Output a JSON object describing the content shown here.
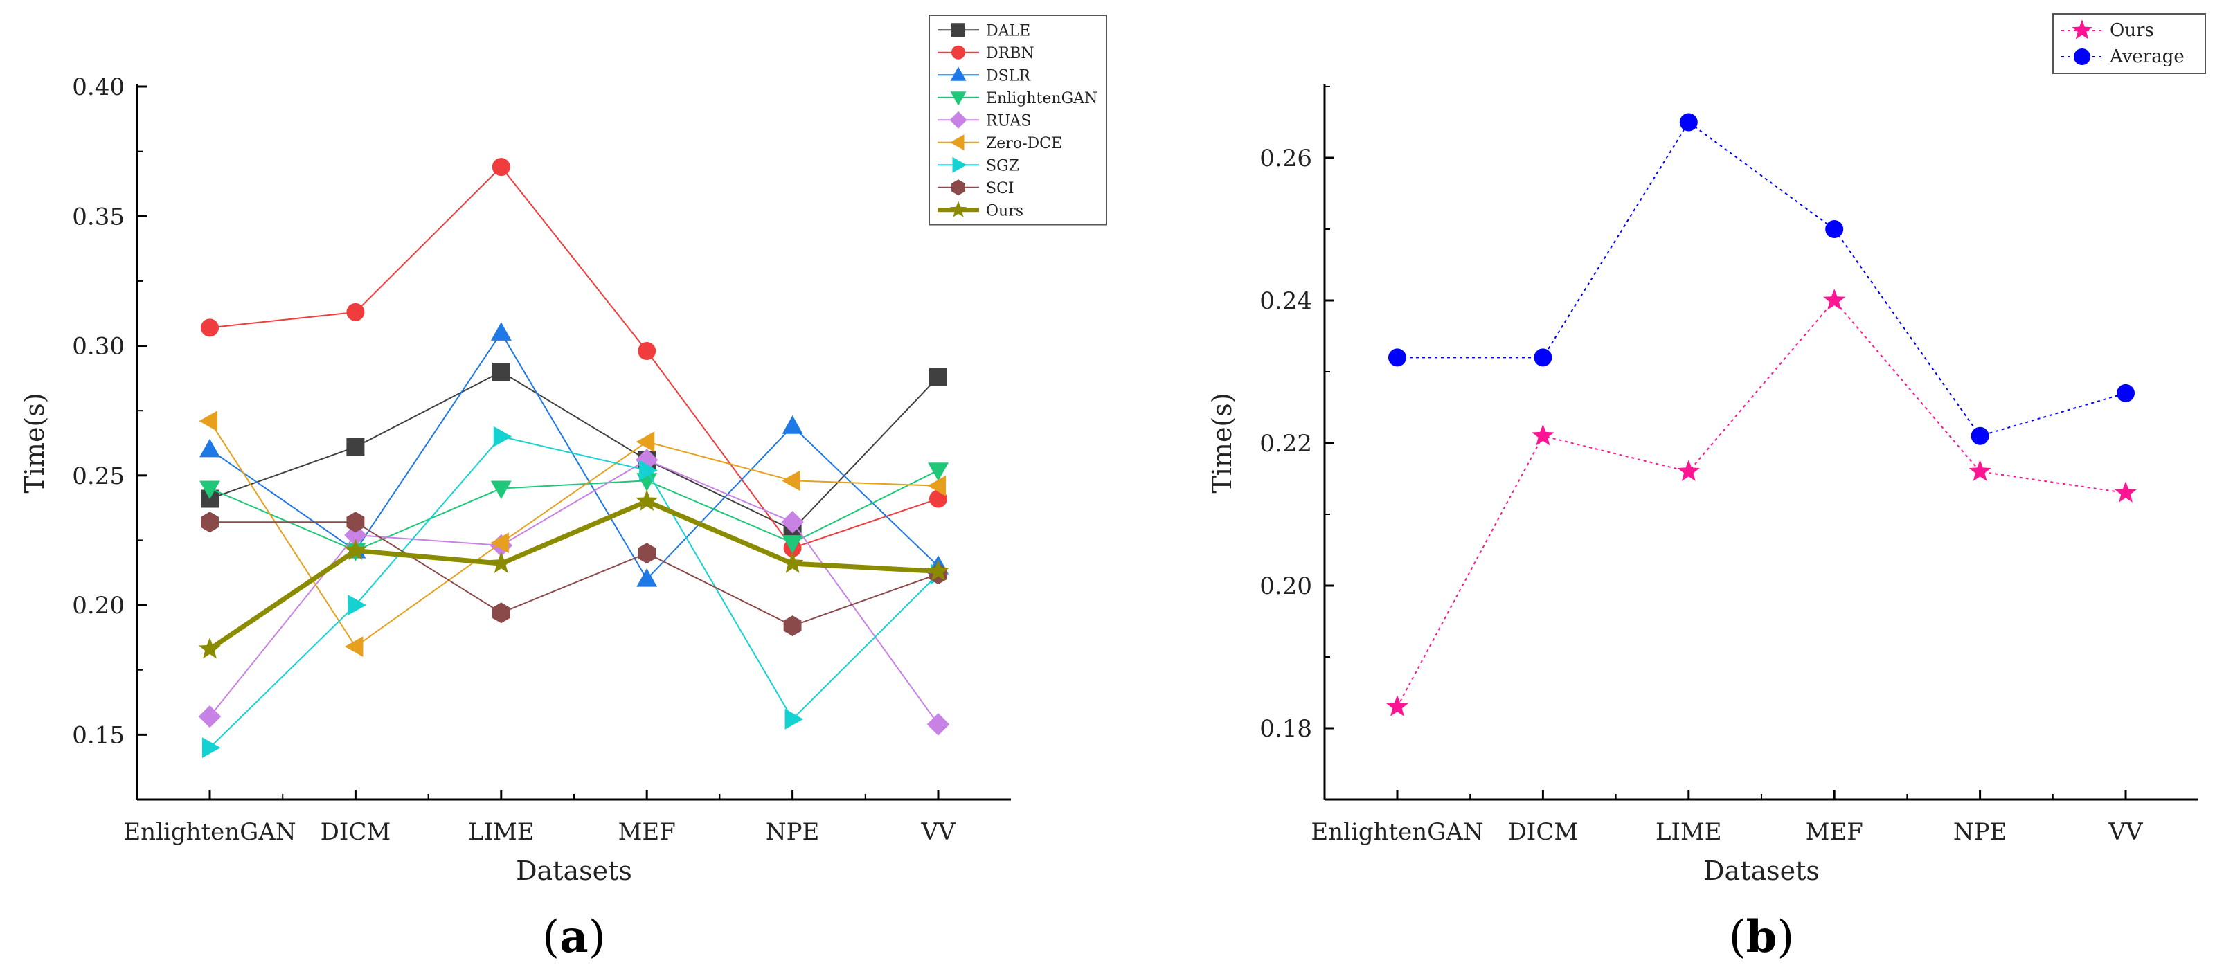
{
  "chart_data": [
    {
      "type": "line",
      "panel_label": "(a)",
      "panel_letter": "a",
      "xlabel": "Datasets",
      "ylabel": "Time(s)",
      "categories": [
        "EnlightenGAN",
        "DICM",
        "LIME",
        "MEF",
        "NPE",
        "VV"
      ],
      "ylim": [
        0.125,
        0.4
      ],
      "yticks": [
        "0.15",
        "0.20",
        "0.25",
        "0.30",
        "0.35",
        "0.40"
      ],
      "legend_position": "top-right",
      "series": [
        {
          "name": "DALE",
          "color": "#404040",
          "marker": "square",
          "values": [
            0.241,
            0.261,
            0.29,
            0.256,
            0.229,
            0.288
          ]
        },
        {
          "name": "DRBN",
          "color": "#f03c3c",
          "marker": "circle",
          "values": [
            0.307,
            0.313,
            0.369,
            0.298,
            0.222,
            0.241
          ]
        },
        {
          "name": "DSLR",
          "color": "#1e78e6",
          "marker": "triangle-up",
          "values": [
            0.26,
            0.221,
            0.305,
            0.21,
            0.269,
            0.215
          ]
        },
        {
          "name": "EnlightenGAN",
          "color": "#1ec878",
          "marker": "triangle-down",
          "values": [
            0.245,
            0.221,
            0.245,
            0.248,
            0.224,
            0.252
          ]
        },
        {
          "name": "RUAS",
          "color": "#c882e6",
          "marker": "diamond",
          "values": [
            0.157,
            0.227,
            0.223,
            0.256,
            0.232,
            0.154
          ]
        },
        {
          "name": "Zero-DCE",
          "color": "#e6a01e",
          "marker": "triangle-left",
          "values": [
            0.271,
            0.184,
            0.224,
            0.263,
            0.248,
            0.246
          ]
        },
        {
          "name": "SGZ",
          "color": "#14d2d2",
          "marker": "triangle-right",
          "values": [
            0.145,
            0.2,
            0.265,
            0.252,
            0.156,
            0.212
          ]
        },
        {
          "name": "SCI",
          "color": "#8b4a4a",
          "marker": "hexagon",
          "values": [
            0.232,
            0.232,
            0.197,
            0.22,
            0.192,
            0.212
          ]
        },
        {
          "name": "Ours",
          "color": "#8b8b00",
          "marker": "star",
          "values": [
            0.183,
            0.221,
            0.216,
            0.24,
            0.216,
            0.213
          ]
        }
      ]
    },
    {
      "type": "line",
      "panel_label": "(b)",
      "panel_letter": "b",
      "xlabel": "Datasets",
      "ylabel": "Time(s)",
      "categories": [
        "EnlightenGAN",
        "DICM",
        "LIME",
        "MEF",
        "NPE",
        "VV"
      ],
      "ylim": [
        0.17,
        0.27
      ],
      "yticks": [
        "0.18",
        "0.20",
        "0.22",
        "0.24",
        "0.26"
      ],
      "legend_position": "top-right",
      "series": [
        {
          "name": "Ours",
          "color": "#ff1493",
          "marker": "star",
          "values": [
            0.183,
            0.221,
            0.216,
            0.24,
            0.216,
            0.213
          ]
        },
        {
          "name": "Average",
          "color": "#0000ff",
          "marker": "circle",
          "values": [
            0.232,
            0.232,
            0.265,
            0.25,
            0.221,
            0.227
          ]
        }
      ]
    }
  ]
}
